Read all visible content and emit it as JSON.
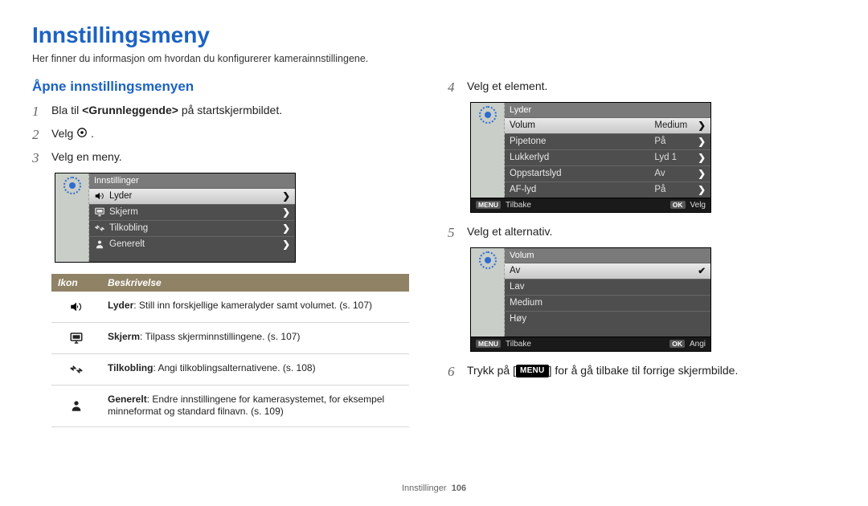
{
  "page": {
    "title": "Innstillingsmeny",
    "intro": "Her finner du informasjon om hvordan du konfigurerer kamerainnstillingene.",
    "footer_label": "Innstillinger",
    "footer_page": "106"
  },
  "colors": {
    "heading_blue": "#1b62c4",
    "table_header_bg": "#8f8265",
    "panel_left_bg": "#c9cec9",
    "panel_main_bg": "#4e4e4e",
    "panel_footer_bg": "#1a1a1a",
    "selected_row_top": "#e9e9e9",
    "selected_row_bot": "#c8c8c8"
  },
  "left": {
    "section_heading": "Åpne innstillingsmenyen",
    "step1_pre": "Bla til ",
    "step1_bold": "<Grunnleggende>",
    "step1_post": " på startskjermbildet.",
    "step2": "Velg ",
    "step3": "Velg en meny.",
    "panel3": {
      "header": "Innstillinger",
      "rows": [
        {
          "icon": "speaker",
          "label": "Lyder",
          "selected": true,
          "chevron": true
        },
        {
          "icon": "monitor",
          "label": "Skjerm",
          "selected": false,
          "chevron": true
        },
        {
          "icon": "plug",
          "label": "Tilkobling",
          "selected": false,
          "chevron": true
        },
        {
          "icon": "person",
          "label": "Generelt",
          "selected": false,
          "chevron": true
        }
      ]
    },
    "desc_table": {
      "th_icon": "Ikon",
      "th_desc": "Beskrivelse",
      "rows": [
        {
          "icon": "speaker",
          "bold": "Lyder",
          "text": ": Still inn forskjellige kameralyder samt volumet. (s. 107)"
        },
        {
          "icon": "monitor",
          "bold": "Skjerm",
          "text": ": Tilpass skjerminnstillingene. (s. 107)"
        },
        {
          "icon": "plug",
          "bold": "Tilkobling",
          "text": ": Angi tilkoblingsalternativene. (s. 108)"
        },
        {
          "icon": "person",
          "bold": "Generelt",
          "text": ": Endre innstillingene for kamerasystemet, for eksempel minneformat og standard filnavn. (s. 109)"
        }
      ]
    }
  },
  "right": {
    "step4": "Velg et element.",
    "panel4": {
      "header": "Lyder",
      "rows": [
        {
          "label": "Volum",
          "value": "Medium",
          "selected": true,
          "chevron": true
        },
        {
          "label": "Pipetone",
          "value": "På",
          "selected": false,
          "chevron": true
        },
        {
          "label": "Lukkerlyd",
          "value": "Lyd 1",
          "selected": false,
          "chevron": true
        },
        {
          "label": "Oppstartslyd",
          "value": "Av",
          "selected": false,
          "chevron": true
        },
        {
          "label": "AF-lyd",
          "value": "På",
          "selected": false,
          "chevron": true
        }
      ],
      "footer_left_tag": "MENU",
      "footer_left": "Tilbake",
      "footer_right_tag": "OK",
      "footer_right": "Velg"
    },
    "step5": "Velg et alternativ.",
    "panel5": {
      "header": "Volum",
      "rows": [
        {
          "label": "Av",
          "selected": true,
          "check": true
        },
        {
          "label": "Lav",
          "selected": false
        },
        {
          "label": "Medium",
          "selected": false
        },
        {
          "label": "Høy",
          "selected": false
        }
      ],
      "footer_left_tag": "MENU",
      "footer_left": "Tilbake",
      "footer_right_tag": "OK",
      "footer_right": "Angi"
    },
    "step6_pre": "Trykk på [",
    "step6_menu": "MENU",
    "step6_post": "] for å gå tilbake til forrige skjermbilde."
  }
}
